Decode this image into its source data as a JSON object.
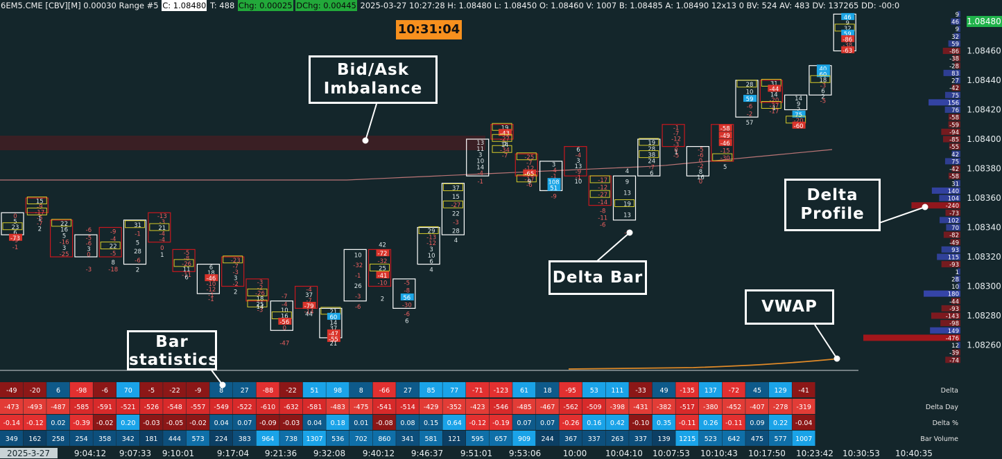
{
  "header": {
    "symbol": "6EM5.CME [CBV][M]  0.00030 Range #5",
    "close": "C: 1.08480",
    "trades": "T: 488",
    "chg": "Chg: 0.00025",
    "dchg": "DChg: 0.00445",
    "rest": "2025-03-27  10:27:28  H: 1.08480  L: 1.08450  O: 1.08460  V: 1007  B: 1.08485  A: 1.08490  12x13  0  BV: 524  AV: 483  DV: 137265  DD: -00:0"
  },
  "clock": "10:31:04",
  "callouts": {
    "imbalance": "Bid/Ask Imbalance",
    "delta_profile": "Delta Profile",
    "delta_bar": "Delta Bar",
    "vwap": "VWAP",
    "bar_stats": "Bar statistics"
  },
  "colors": {
    "background": "#14262b",
    "bar_up": "#ffffff",
    "bar_down": "#c8181e",
    "imbalance_box": "#d8cc2a",
    "positive": "#1da6e6",
    "negative": "#e23a3a",
    "vwap": "#e08a28",
    "ma": "#e58a8a",
    "current_price": "#1fb24a"
  },
  "chart_data": {
    "type": "footprint",
    "price_axis": {
      "ticks": [
        "1.08480",
        "1.08460",
        "1.08440",
        "1.08420",
        "1.08400",
        "1.08380",
        "1.08360",
        "1.08340",
        "1.08320",
        "1.08300",
        "1.08280",
        "1.08260"
      ],
      "current": "1.08480"
    },
    "time_axis": {
      "date": "2025-3-27",
      "ticks": [
        "9:04:12",
        "9:07:33",
        "9:10:01",
        "9:17:04",
        "9:21:36",
        "9:32:08",
        "9:40:12",
        "9:46:37",
        "9:51:01",
        "9:53:06",
        "10:00",
        "10:04:10",
        "10:07:53",
        "10:10:43",
        "10:17:50",
        "10:23:42",
        "10:30:53",
        "10:40:35"
      ]
    },
    "bar_stats": {
      "rows": [
        "Delta",
        "Delta Day",
        "Delta %",
        "Bar Volume"
      ],
      "delta": [
        -49,
        -20,
        6,
        -98,
        -6,
        70,
        -5,
        -22,
        -9,
        8,
        27,
        -88,
        -22,
        51,
        98,
        8,
        -66,
        27,
        85,
        77,
        -71,
        -123,
        61,
        18,
        -95,
        53,
        111,
        -33,
        49,
        -135,
        137,
        -72,
        45,
        129,
        -41
      ],
      "delta_day": [
        -473,
        -493,
        -487,
        -585,
        -591,
        -521,
        -526,
        -548,
        -557,
        -549,
        -522,
        -610,
        -632,
        -581,
        -483,
        -475,
        -541,
        -514,
        -429,
        -352,
        -423,
        -546,
        -485,
        -467,
        -562,
        -509,
        -398,
        -431,
        -382,
        -517,
        -380,
        -452,
        -407,
        -278,
        -319
      ],
      "delta_pct": [
        "-0.14",
        "-0.12",
        "0.02",
        "-0.39",
        "-0.02",
        "0.20",
        "-0.03",
        "-0.05",
        "-0.02",
        "0.04",
        "0.07",
        "-0.09",
        "-0.03",
        "0.04",
        "0.18",
        "0.01",
        "-0.08",
        "0.08",
        "0.15",
        "0.64",
        "-0.12",
        "-0.19",
        "0.07",
        "0.07",
        "-0.26",
        "0.16",
        "0.42",
        "-0.10",
        "0.35",
        "-0.11",
        "0.26",
        "-0.11",
        "0.09",
        "0.22",
        "-0.04"
      ],
      "volume": [
        349,
        162,
        258,
        254,
        358,
        342,
        181,
        444,
        573,
        224,
        383,
        964,
        738,
        1307,
        536,
        702,
        860,
        341,
        581,
        121,
        595,
        657,
        909,
        244,
        367,
        337,
        263,
        337,
        139,
        1215,
        523,
        642,
        475,
        577,
        1007
      ]
    },
    "delta_profile": [
      {
        "price": 1.08485,
        "value": 9
      },
      {
        "price": 1.0848,
        "value": 46
      },
      {
        "price": 1.08475,
        "value": 9
      },
      {
        "price": 1.0847,
        "value": 32
      },
      {
        "price": 1.08465,
        "value": 59
      },
      {
        "price": 1.0846,
        "value": -86
      },
      {
        "price": 1.08455,
        "value": -38
      },
      {
        "price": 1.0845,
        "value": -28
      },
      {
        "price": 1.08445,
        "value": 83
      },
      {
        "price": 1.0844,
        "value": 27
      },
      {
        "price": 1.08435,
        "value": -42
      },
      {
        "price": 1.0843,
        "value": 75
      },
      {
        "price": 1.08425,
        "value": 156
      },
      {
        "price": 1.0842,
        "value": 76
      },
      {
        "price": 1.08415,
        "value": -58
      },
      {
        "price": 1.0841,
        "value": -59
      },
      {
        "price": 1.08405,
        "value": -94
      },
      {
        "price": 1.084,
        "value": -85
      },
      {
        "price": 1.08395,
        "value": -55
      },
      {
        "price": 1.0839,
        "value": 42
      },
      {
        "price": 1.08385,
        "value": 75
      },
      {
        "price": 1.0838,
        "value": -42
      },
      {
        "price": 1.08375,
        "value": -58
      },
      {
        "price": 1.0837,
        "value": 31
      },
      {
        "price": 1.08365,
        "value": 140
      },
      {
        "price": 1.0836,
        "value": 104
      },
      {
        "price": 1.08355,
        "value": -240
      },
      {
        "price": 1.0835,
        "value": -73
      },
      {
        "price": 1.08345,
        "value": 102
      },
      {
        "price": 1.0834,
        "value": 70
      },
      {
        "price": 1.08335,
        "value": -82
      },
      {
        "price": 1.0833,
        "value": -49
      },
      {
        "price": 1.08325,
        "value": 93
      },
      {
        "price": 1.0832,
        "value": 115
      },
      {
        "price": 1.08315,
        "value": -93
      },
      {
        "price": 1.0831,
        "value": 1
      },
      {
        "price": 1.08305,
        "value": 28
      },
      {
        "price": 1.083,
        "value": 10
      },
      {
        "price": 1.08295,
        "value": 180
      },
      {
        "price": 1.0829,
        "value": -44
      },
      {
        "price": 1.08285,
        "value": -93
      },
      {
        "price": 1.0828,
        "value": -143
      },
      {
        "price": 1.08275,
        "value": -98
      },
      {
        "price": 1.0827,
        "value": 149
      },
      {
        "price": 1.08265,
        "value": -476
      },
      {
        "price": 1.0826,
        "value": 12
      },
      {
        "price": 1.08255,
        "value": -39
      },
      {
        "price": 1.0825,
        "value": -74
      }
    ],
    "footprint_bars": [
      {
        "open": 1.0835,
        "close": 1.08335,
        "high": 1.08355,
        "low": 1.0833,
        "dir": "up",
        "cells": [
          "0",
          "5",
          "23",
          "6",
          "-73"
        ],
        "extra": [
          "-9",
          "-1"
        ]
      },
      {
        "open": 1.0835,
        "close": 1.0836,
        "high": 1.08365,
        "low": 1.0834,
        "dir": "down",
        "cells": [
          "15",
          "-9",
          "-17",
          "-5",
          "-7",
          "2"
        ],
        "extra": [
          "1"
        ]
      },
      {
        "open": 1.08345,
        "close": 1.0832,
        "high": 1.08345,
        "low": 1.0832,
        "dir": "down",
        "cells": [
          "22",
          "16",
          "5",
          "-16",
          "3",
          "-25"
        ]
      },
      {
        "open": 1.08335,
        "close": 1.0832,
        "high": 1.0834,
        "low": 1.08305,
        "dir": "up",
        "cells": [
          "-5",
          "-6",
          "3",
          "0"
        ],
        "extra": [
          "-6",
          "-3"
        ]
      },
      {
        "open": 1.0834,
        "close": 1.0832,
        "high": 1.0835,
        "low": 1.0832,
        "dir": "down",
        "cells": [
          "-9",
          "-4",
          "22",
          "-5"
        ],
        "extra": [
          "8",
          "-18"
        ]
      },
      {
        "open": 1.08345,
        "close": 1.08315,
        "high": 1.0835,
        "low": 1.08315,
        "dir": "up",
        "cells": [
          "31",
          "-1",
          "5",
          "28",
          "-6"
        ],
        "extra": [
          "2"
        ]
      },
      {
        "open": 1.0835,
        "close": 1.0833,
        "high": 1.08355,
        "low": 1.08325,
        "dir": "down",
        "cells": [
          "-13",
          "-3",
          "21",
          "-4",
          "-4"
        ],
        "extra": [
          "0",
          "1"
        ]
      },
      {
        "open": 1.08325,
        "close": 1.0831,
        "high": 1.08335,
        "low": 1.0831,
        "dir": "down",
        "cells": [
          "-5",
          "-8",
          "-26",
          "11",
          "-11"
        ],
        "extra": [
          "6"
        ]
      },
      {
        "open": 1.08315,
        "close": 1.08295,
        "high": 1.0832,
        "low": 1.0829,
        "dir": "up",
        "cells": [
          "6",
          "18",
          "-46",
          "-10",
          "-12",
          "-1"
        ],
        "extra": [
          "-1"
        ]
      },
      {
        "open": 1.0832,
        "close": 1.083,
        "high": 1.08325,
        "low": 1.083,
        "dir": "down",
        "cells": [
          "-23",
          "-7",
          "-3",
          "3",
          "-2"
        ],
        "extra": [
          "2"
        ]
      },
      {
        "open": 1.08305,
        "close": 1.0829,
        "high": 1.0831,
        "low": 1.0828,
        "dir": "down",
        "cells": [
          "-3",
          "-2",
          "-26",
          "18",
          "25",
          "-3"
        ],
        "extra": [
          "14"
        ]
      },
      {
        "open": 1.0829,
        "close": 1.0827,
        "high": 1.08295,
        "low": 1.0826,
        "dir": "up",
        "cells": [
          "-4",
          "10",
          "16",
          "-56",
          "0"
        ],
        "extra": [
          "-7",
          "-47"
        ]
      },
      {
        "open": 1.083,
        "close": 1.08285,
        "high": 1.08305,
        "low": 1.08275,
        "dir": "down",
        "cells": [
          "-4",
          "37",
          "-7",
          "-79",
          "-14"
        ],
        "extra": [
          "44"
        ]
      },
      {
        "open": 1.08285,
        "close": 1.08265,
        "high": 1.0829,
        "low": 1.08255,
        "dir": "up",
        "cells": [
          "21",
          "60",
          "14",
          "37",
          "-47",
          "-55"
        ],
        "extra": [
          "21"
        ]
      },
      {
        "open": 1.08325,
        "close": 1.0829,
        "high": 1.0833,
        "low": 1.08285,
        "dir": "up",
        "cells": [
          "10",
          "-32",
          "-1",
          "26",
          "-3"
        ],
        "extra": [
          "-6"
        ]
      },
      {
        "open": 1.08325,
        "close": 1.083,
        "high": 1.08335,
        "low": 1.08295,
        "dir": "down",
        "cells": [
          "-72",
          "-32",
          "25",
          "-41",
          "-10"
        ],
        "extra": [
          "42",
          "2"
        ]
      },
      {
        "open": 1.08305,
        "close": 1.08285,
        "high": 1.08305,
        "low": 1.0828,
        "dir": "up",
        "cells": [
          "-5",
          "-8",
          "56",
          "-30"
        ],
        "extra": [
          "-6",
          "6"
        ]
      },
      {
        "open": 1.0834,
        "close": 1.08315,
        "high": 1.08345,
        "low": 1.0831,
        "dir": "up",
        "cells": [
          "29",
          "-13",
          "-12",
          "3",
          "10",
          "6"
        ],
        "extra": [
          "4"
        ]
      },
      {
        "open": 1.0837,
        "close": 1.08335,
        "high": 1.08375,
        "low": 1.08335,
        "dir": "up",
        "cells": [
          "37",
          "15",
          "-27",
          "22",
          "-3",
          "28"
        ],
        "extra": [
          "4"
        ]
      },
      {
        "open": 1.084,
        "close": 1.08375,
        "high": 1.084,
        "low": 1.0837,
        "dir": "up",
        "cells": [
          "13",
          "11",
          "3",
          "10",
          "14",
          "-4"
        ],
        "extra": [
          "-1"
        ]
      },
      {
        "open": 1.084,
        "close": 1.0841,
        "high": 1.0842,
        "low": 1.08395,
        "dir": "down",
        "cells": [
          "19",
          "-43",
          "-27",
          "7",
          "-34",
          "-7"
        ],
        "extra": [
          "14"
        ]
      },
      {
        "open": 1.0839,
        "close": 1.08375,
        "high": 1.084,
        "low": 1.0837,
        "dir": "down",
        "cells": [
          "-25",
          "-7",
          "-12",
          "-65",
          "-17",
          "-6"
        ],
        "extra": [
          "9"
        ]
      },
      {
        "open": 1.08385,
        "close": 1.08365,
        "high": 1.08385,
        "low": 1.0836,
        "dir": "up",
        "cells": [
          "3",
          "-4",
          "-1",
          "108",
          "51"
        ],
        "extra": [
          "-9"
        ]
      },
      {
        "open": 1.08395,
        "close": 1.08375,
        "high": 1.084,
        "low": 1.0837,
        "dir": "down",
        "cells": [
          "6",
          "-4",
          "3",
          "13",
          "-9",
          "-1"
        ],
        "extra": [
          "10"
        ]
      },
      {
        "open": 1.08375,
        "close": 1.08355,
        "high": 1.08385,
        "low": 1.0835,
        "dir": "down",
        "cells": [
          "-17",
          "-12",
          "-27",
          "-14"
        ],
        "extra": [
          "-8",
          "-11",
          "-6"
        ]
      },
      {
        "open": 1.08375,
        "close": 1.08345,
        "high": 1.08375,
        "low": 1.0834,
        "dir": "up",
        "cells": [
          "9",
          "13",
          "19",
          "13"
        ],
        "extra": [
          "4",
          "-7"
        ]
      },
      {
        "open": 1.084,
        "close": 1.08375,
        "high": 1.08405,
        "low": 1.0837,
        "dir": "up",
        "cells": [
          "19",
          "28",
          "38",
          "24",
          "-7",
          "6"
        ]
      },
      {
        "open": 1.08395,
        "close": 1.0841,
        "high": 1.0841,
        "low": 1.0839,
        "dir": "down",
        "cells": [
          "-1",
          "-7",
          "-12",
          "-3",
          "0",
          "-5"
        ],
        "extra": [
          "1"
        ]
      },
      {
        "open": 1.08395,
        "close": 1.08375,
        "high": 1.084,
        "low": 1.0837,
        "dir": "up",
        "cells": [
          "-5",
          "-6",
          "0",
          "-2",
          "8",
          "16"
        ],
        "extra": [
          "0"
        ]
      },
      {
        "open": 1.0841,
        "close": 1.08385,
        "high": 1.0842,
        "low": 1.0838,
        "dir": "down",
        "cells": [
          "-58",
          "-49",
          "-46",
          "-15",
          "-30"
        ],
        "extra": [
          "5"
        ]
      },
      {
        "open": 1.0844,
        "close": 1.08415,
        "high": 1.08445,
        "low": 1.0841,
        "dir": "up",
        "cells": [
          "28",
          "10",
          "59",
          "-6",
          "-2"
        ],
        "extra": [
          "57"
        ]
      },
      {
        "open": 1.0844,
        "close": 1.08425,
        "high": 1.0845,
        "low": 1.0842,
        "dir": "down",
        "cells": [
          "31",
          "-44",
          "14",
          "-20",
          "-37",
          "-17"
        ],
        "extra": [
          "1"
        ]
      },
      {
        "open": 1.0843,
        "close": 1.0842,
        "high": 1.0843,
        "low": 1.0841,
        "dir": "up",
        "cells": [
          "14",
          "9",
          "2",
          "75",
          "-20",
          "-60"
        ]
      },
      {
        "open": 1.0845,
        "close": 1.0843,
        "high": 1.08455,
        "low": 1.08425,
        "dir": "up",
        "cells": [
          "40",
          "60",
          "18",
          "-3",
          "6",
          "2"
        ],
        "extra": [
          "-5"
        ]
      },
      {
        "open": 1.08485,
        "close": 1.0846,
        "high": 1.08485,
        "low": 1.08455,
        "dir": "up",
        "cells": [
          "46",
          "9",
          "32",
          "59",
          "-86",
          "-38",
          "-63"
        ]
      }
    ]
  }
}
